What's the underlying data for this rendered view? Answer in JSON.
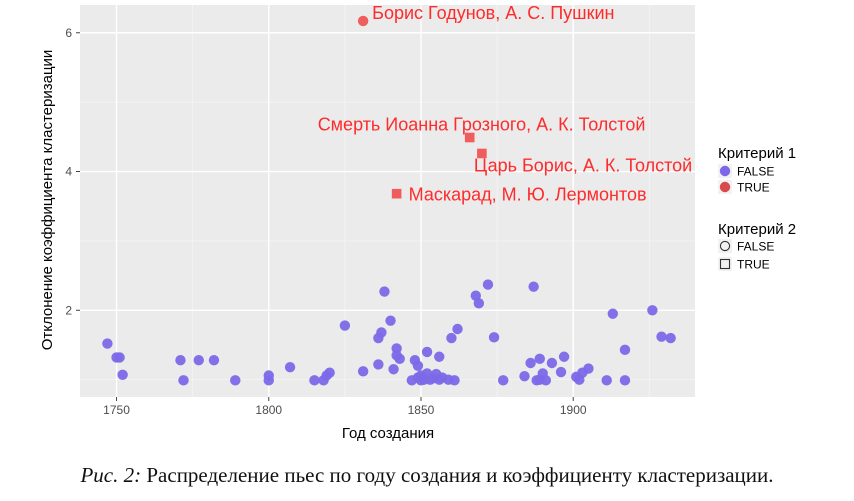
{
  "chart_data": {
    "type": "scatter",
    "xlabel": "Год создания",
    "ylabel": "Отклонение коэффициента кластеризации",
    "xlim": [
      1738,
      1940
    ],
    "ylim": [
      0.75,
      6.4
    ],
    "xticks": [
      1750,
      1800,
      1850,
      1900
    ],
    "yticks": [
      2,
      4,
      6
    ],
    "grid": true,
    "legend_position": "right",
    "legend": {
      "criterion1": {
        "title": "Критерий 1",
        "entries": [
          "FALSE",
          "TRUE"
        ],
        "colors": [
          "#7b69e8",
          "#f05d5d"
        ]
      },
      "criterion2": {
        "title": "Критерий 2",
        "entries": [
          "FALSE",
          "TRUE"
        ],
        "shapes": [
          "circle",
          "square"
        ]
      }
    },
    "series_false": {
      "x": [
        1747,
        1750,
        1751,
        1752,
        1771,
        1772,
        1777,
        1782,
        1789,
        1800,
        1800,
        1807,
        1815,
        1818,
        1819,
        1820,
        1825,
        1831,
        1836,
        1836,
        1837,
        1838,
        1840,
        1841,
        1842,
        1842,
        1843,
        1847,
        1848,
        1849,
        1849,
        1850,
        1850,
        1851,
        1852,
        1852,
        1853,
        1854,
        1855,
        1856,
        1856,
        1857,
        1859,
        1860,
        1861,
        1862,
        1868,
        1869,
        1872,
        1874,
        1877,
        1884,
        1886,
        1887,
        1888,
        1889,
        1889,
        1890,
        1891,
        1893,
        1896,
        1897,
        1901,
        1902,
        1903,
        1905,
        1911,
        1913,
        1917,
        1917,
        1926,
        1929,
        1932
      ],
      "y": [
        1.52,
        1.32,
        1.32,
        1.07,
        1.28,
        0.99,
        1.28,
        1.28,
        0.99,
        0.99,
        1.06,
        1.18,
        0.99,
        0.99,
        1.06,
        1.1,
        1.78,
        1.12,
        1.22,
        1.6,
        1.68,
        2.27,
        1.85,
        1.15,
        1.45,
        1.35,
        1.3,
        0.99,
        1.28,
        1.2,
        1.03,
        0.99,
        1.06,
        1.0,
        1.09,
        1.4,
        1.0,
        1.02,
        1.08,
        1.0,
        1.33,
        1.03,
        1.0,
        1.6,
        0.99,
        1.73,
        2.21,
        2.1,
        2.37,
        1.61,
        0.99,
        1.05,
        1.24,
        2.34,
        0.99,
        1.0,
        1.3,
        1.09,
        0.99,
        1.24,
        1.11,
        1.33,
        1.04,
        1.0,
        1.1,
        1.16,
        0.99,
        1.95,
        1.43,
        0.99,
        2.0,
        1.62,
        1.6
      ]
    },
    "series_true": [
      {
        "x": 1831,
        "y": 6.17,
        "shape": "circle",
        "label": "Борис Годунов, А. С. Пушкин"
      },
      {
        "x": 1866,
        "y": 4.49,
        "shape": "square",
        "label": "Смерть Иоанна Грозного, А. К. Толстой"
      },
      {
        "x": 1870,
        "y": 4.26,
        "shape": "square",
        "label": "Царь Борис, А. К. Толстой"
      },
      {
        "x": 1842,
        "y": 3.68,
        "shape": "square",
        "label": "Маскарад, М. Ю. Лермонтов"
      }
    ]
  },
  "caption": {
    "figure": "Рис. 2:",
    "text": " Распределение пьес по году создания и коэффициенту кластеризации."
  }
}
